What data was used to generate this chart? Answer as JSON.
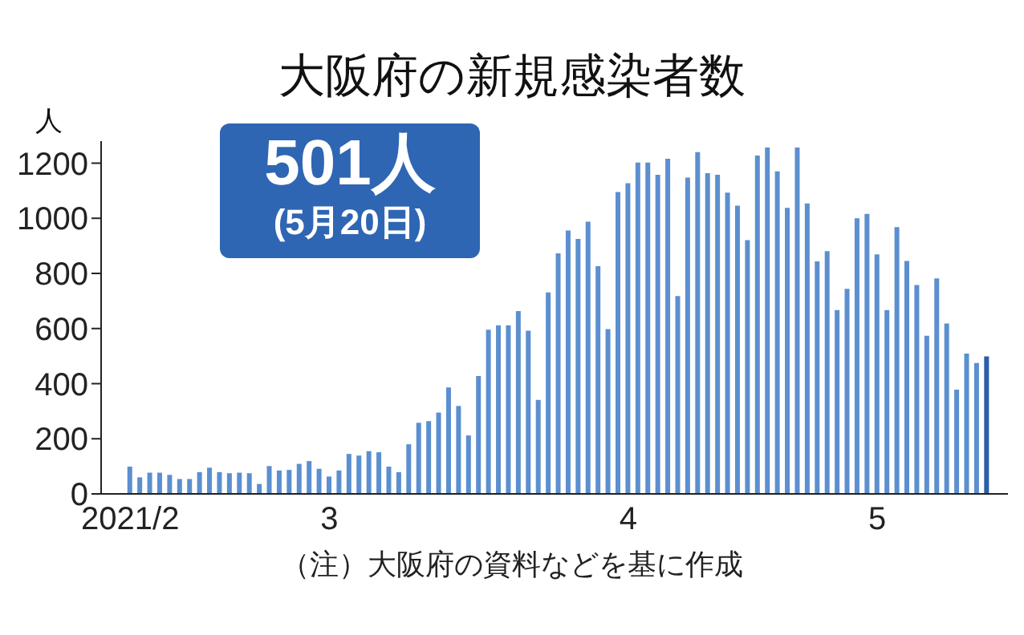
{
  "chart_data": {
    "type": "bar",
    "title": "大阪府の新規感染者数",
    "ylabel": "人",
    "annotations": [
      "501人",
      "(5月20日)",
      "（注）大阪府の資料などを基に作成"
    ],
    "categories": [
      "2021/2",
      null,
      null,
      null,
      null,
      null,
      null,
      null,
      null,
      null,
      null,
      null,
      null,
      null,
      null,
      null,
      null,
      null,
      null,
      null,
      "3",
      null,
      null,
      null,
      null,
      null,
      null,
      null,
      null,
      null,
      null,
      null,
      null,
      null,
      null,
      null,
      null,
      null,
      null,
      null,
      null,
      null,
      null,
      null,
      null,
      null,
      null,
      null,
      null,
      null,
      "4",
      null,
      null,
      null,
      null,
      null,
      null,
      null,
      null,
      null,
      null,
      null,
      null,
      null,
      null,
      null,
      null,
      null,
      null,
      null,
      null,
      null,
      null,
      null,
      null,
      "5",
      null,
      null,
      null,
      null,
      null,
      null,
      null,
      null,
      null,
      null,
      null
    ],
    "values": [
      99,
      60,
      77,
      77,
      69,
      54,
      54,
      79,
      95,
      79,
      75,
      77,
      75,
      36,
      101,
      85,
      87,
      109,
      119,
      91,
      63,
      85,
      145,
      139,
      155,
      151,
      99,
      79,
      180,
      258,
      264,
      295,
      386,
      319,
      212,
      428,
      596,
      612,
      612,
      663,
      592,
      341,
      731,
      873,
      956,
      925,
      988,
      826,
      598,
      1095,
      1127,
      1202,
      1202,
      1158,
      1216,
      718,
      1148,
      1240,
      1164,
      1158,
      1093,
      1046,
      921,
      1228,
      1257,
      1170,
      1038,
      1257,
      1054,
      844,
      881,
      667,
      744,
      1000,
      1016,
      869,
      667,
      968,
      845,
      758,
      574,
      782,
      618,
      378,
      509,
      475,
      499
    ],
    "colors": [
      "#5b8fcf",
      "#5b8fcf",
      "#5b8fcf",
      "#5b8fcf",
      "#5b8fcf",
      "#5b8fcf",
      "#5b8fcf",
      "#5b8fcf",
      "#5b8fcf",
      "#5b8fcf",
      "#5b8fcf",
      "#5b8fcf",
      "#5b8fcf",
      "#5b8fcf",
      "#5b8fcf",
      "#5b8fcf",
      "#5b8fcf",
      "#5b8fcf",
      "#5b8fcf",
      "#5b8fcf",
      "#5b8fcf",
      "#5b8fcf",
      "#5b8fcf",
      "#5b8fcf",
      "#5b8fcf",
      "#5b8fcf",
      "#5b8fcf",
      "#5b8fcf",
      "#5b8fcf",
      "#5b8fcf",
      "#5b8fcf",
      "#5b8fcf",
      "#5b8fcf",
      "#5b8fcf",
      "#5b8fcf",
      "#5b8fcf",
      "#5b8fcf",
      "#5b8fcf",
      "#5b8fcf",
      "#5b8fcf",
      "#5b8fcf",
      "#5b8fcf",
      "#5b8fcf",
      "#5b8fcf",
      "#5b8fcf",
      "#5b8fcf",
      "#5b8fcf",
      "#5b8fcf",
      "#5b8fcf",
      "#5b8fcf",
      "#5b8fcf",
      "#5b8fcf",
      "#5b8fcf",
      "#5b8fcf",
      "#5b8fcf",
      "#5b8fcf",
      "#5b8fcf",
      "#5b8fcf",
      "#5b8fcf",
      "#5b8fcf",
      "#5b8fcf",
      "#5b8fcf",
      "#5b8fcf",
      "#5b8fcf",
      "#5b8fcf",
      "#5b8fcf",
      "#5b8fcf",
      "#5b8fcf",
      "#5b8fcf",
      "#5b8fcf",
      "#5b8fcf",
      "#5b8fcf",
      "#5b8fcf",
      "#5b8fcf",
      "#5b8fcf",
      "#5b8fcf",
      "#5b8fcf",
      "#5b8fcf",
      "#5b8fcf",
      "#5b8fcf",
      "#5b8fcf",
      "#5b8fcf",
      "#5b8fcf",
      "#5b8fcf",
      "#5b8fcf",
      "#5b8fcf",
      "#2a5ea8"
    ],
    "ylim": [
      0,
      1280
    ],
    "yticks": [
      0,
      200,
      400,
      600,
      800,
      1000,
      1200
    ],
    "grid": false,
    "legend": false
  }
}
